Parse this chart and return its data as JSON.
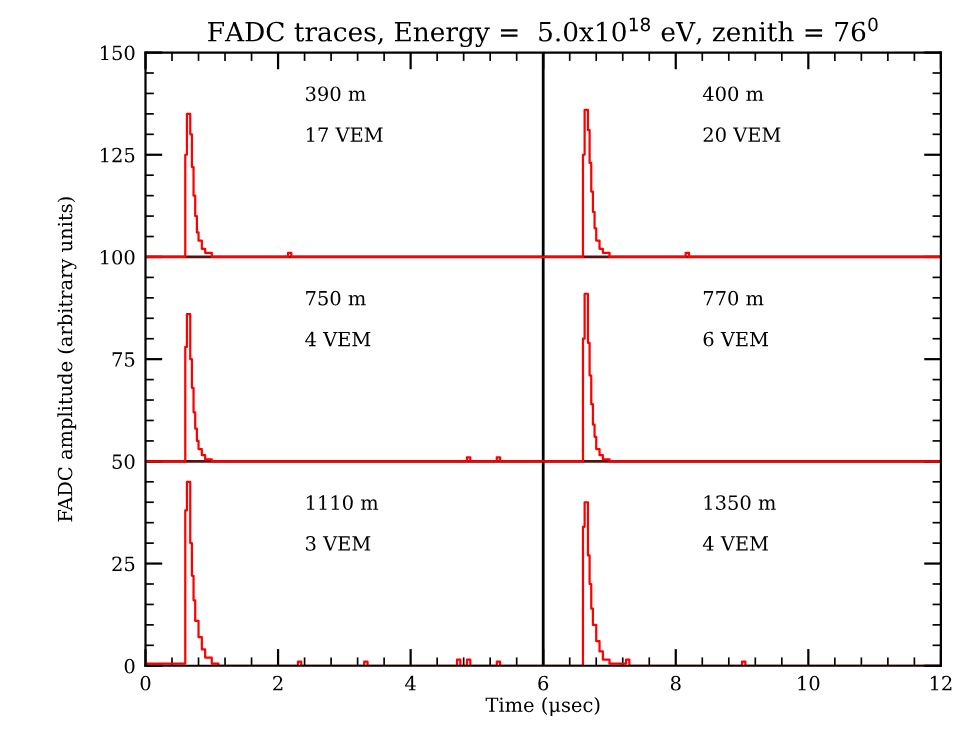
{
  "chart_data": {
    "type": "step",
    "title": "FADC traces, Energy =  5.0x10$^{18}$ eV, zenith = 76$^{0}$",
    "xlabel": "Time (μsec)",
    "ylabel": "FADC amplitude (arbitrary units)",
    "xlim": [
      0,
      12
    ],
    "ylim": [
      0,
      150
    ],
    "xticks": [
      0,
      2,
      4,
      6,
      8,
      10,
      12
    ],
    "yticks": [
      0,
      25,
      50,
      75,
      100,
      125,
      150
    ],
    "grid": false,
    "legend": false,
    "marker": "none",
    "line_style": "solid",
    "series": [
      {
        "color": "#ff0000",
        "x": [
          0,
          0.6,
          0.625,
          0.675,
          0.7,
          0.725,
          0.75,
          0.775,
          0.8,
          0.85,
          0.9,
          1.0,
          2.15,
          2.2,
          6.6,
          6.625,
          6.675,
          6.7,
          6.725,
          6.75,
          6.775,
          6.8,
          6.85,
          6.9,
          7.0,
          8.15,
          8.2,
          12
        ],
        "values": [
          100,
          125,
          135,
          130,
          122,
          115,
          110,
          106,
          104,
          102,
          101,
          100,
          101,
          100,
          125,
          136,
          131,
          123,
          116,
          111,
          107,
          104,
          102,
          101,
          100,
          101,
          100,
          100
        ]
      },
      {
        "color": "#ff0000",
        "x": [
          0,
          0.6,
          0.625,
          0.675,
          0.7,
          0.725,
          0.75,
          0.775,
          0.8,
          0.85,
          0.9,
          1.0,
          4.85,
          4.9,
          5.3,
          5.35,
          6.6,
          6.625,
          6.675,
          6.7,
          6.725,
          6.75,
          6.775,
          6.8,
          6.85,
          6.9,
          7.0,
          12
        ],
        "values": [
          50,
          78,
          86,
          75,
          68,
          62,
          58,
          55,
          53,
          51.5,
          50.5,
          50,
          51,
          50,
          51,
          50,
          80,
          91,
          79,
          71,
          64,
          59,
          56,
          53,
          51.5,
          50.5,
          50,
          50
        ]
      },
      {
        "color": "#ff0000",
        "x": [
          0,
          0.6,
          0.625,
          0.675,
          0.7,
          0.725,
          0.75,
          0.8,
          0.85,
          0.9,
          1.0,
          1.1,
          2.3,
          2.35,
          3.3,
          3.35,
          4.7,
          4.75,
          4.85,
          4.9,
          5.3,
          5.35,
          6.6,
          6.625,
          6.675,
          6.7,
          6.725,
          6.75,
          6.8,
          6.85,
          6.9,
          7.0,
          7.25,
          7.3,
          9.0,
          9.05,
          12
        ],
        "values": [
          0.5,
          38,
          45,
          30,
          22,
          16,
          11,
          7,
          4,
          2,
          0.5,
          0,
          1,
          0,
          1,
          0,
          1.5,
          0,
          1.5,
          0,
          1,
          0,
          34,
          40,
          27,
          20,
          14,
          10,
          6,
          3.5,
          1.5,
          0.5,
          1.5,
          0,
          1,
          0,
          0
        ]
      }
    ],
    "ref_lines": [
      {
        "axis": "y",
        "value": 50,
        "color": "#5a1010"
      },
      {
        "axis": "y",
        "value": 100,
        "color": "#5a1010"
      },
      {
        "axis": "x",
        "value": 6,
        "color": "#000000"
      }
    ],
    "annotations": [
      "390 m",
      "17 VEM",
      "400 m",
      "20 VEM",
      "750 m",
      "4 VEM",
      "770 m",
      "6 VEM",
      "1110 m",
      "3 VEM",
      "1350 m",
      "4 VEM"
    ]
  }
}
